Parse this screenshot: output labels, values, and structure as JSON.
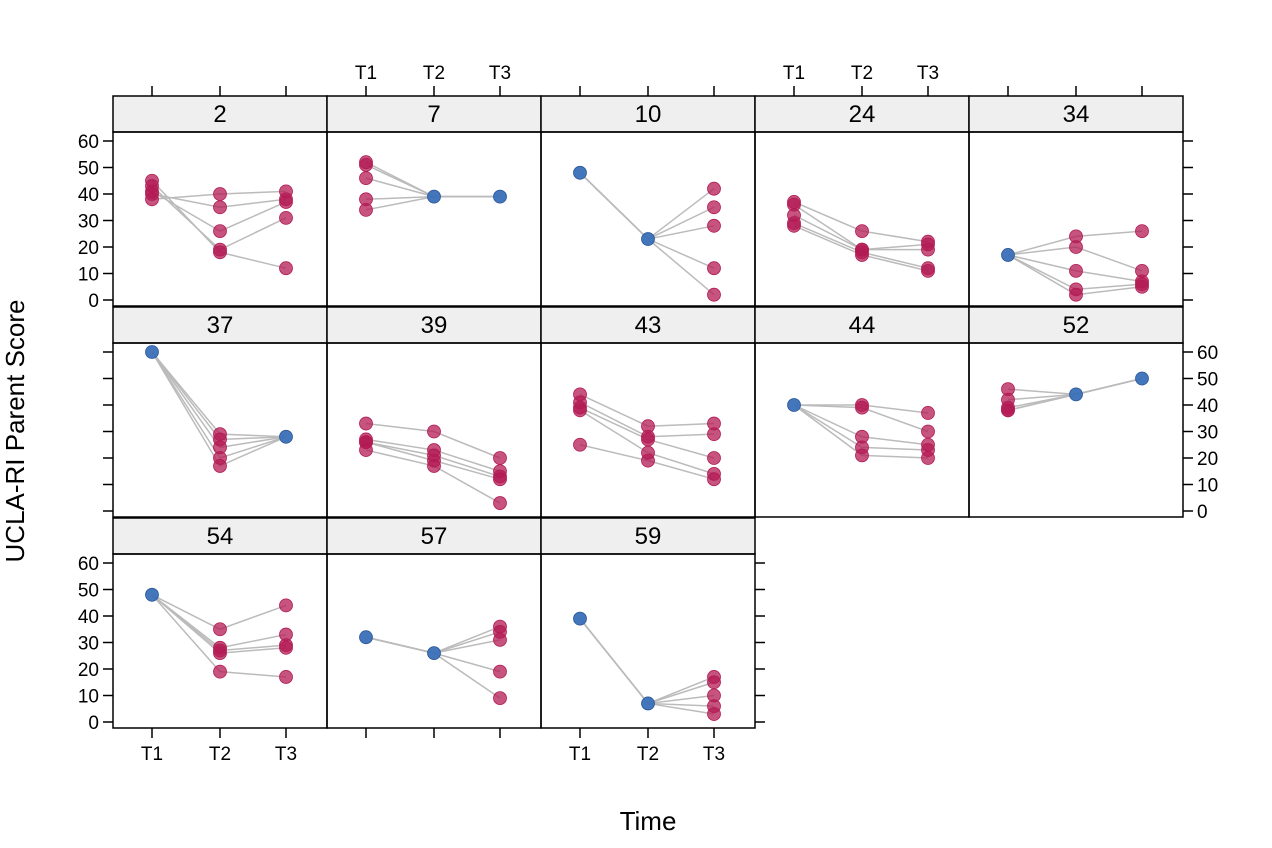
{
  "chart_data": {
    "type": "scatter",
    "title": "",
    "xlabel": "Time",
    "ylabel": "UCLA-RI Parent Score",
    "x_ticks": [
      "T1",
      "T2",
      "T3"
    ],
    "y_ticks": [
      0,
      10,
      20,
      30,
      40,
      50,
      60
    ],
    "ylim": [
      -1,
      63
    ],
    "grid": false,
    "colors": {
      "anchor": "#3a6fb8",
      "member": "#b31b54",
      "line": "#bbbbbb",
      "strip": "#efefef"
    },
    "panels": [
      {
        "id": "2",
        "anchor": null,
        "members": [
          [
            45,
            18,
            12
          ],
          [
            43,
            19,
            31
          ],
          [
            41,
            26,
            37
          ],
          [
            38,
            40,
            41
          ],
          [
            40,
            35,
            38
          ]
        ]
      },
      {
        "id": "7",
        "anchor": [
          null,
          39,
          39
        ],
        "members": [
          [
            52,
            null,
            null
          ],
          [
            51,
            null,
            null
          ],
          [
            46,
            null,
            null
          ],
          [
            38,
            null,
            null
          ],
          [
            34,
            null,
            null
          ]
        ]
      },
      {
        "id": "10",
        "anchor": [
          48,
          23,
          null
        ],
        "members": [
          [
            null,
            null,
            42
          ],
          [
            null,
            null,
            35
          ],
          [
            null,
            null,
            28
          ],
          [
            null,
            null,
            12
          ],
          [
            null,
            null,
            2
          ]
        ]
      },
      {
        "id": "24",
        "anchor": null,
        "members": [
          [
            37,
            26,
            22
          ],
          [
            36,
            19,
            21
          ],
          [
            32,
            19,
            19
          ],
          [
            29,
            18,
            12
          ],
          [
            28,
            17,
            11
          ]
        ]
      },
      {
        "id": "34",
        "anchor": [
          17,
          null,
          null
        ],
        "members": [
          [
            null,
            24,
            26
          ],
          [
            null,
            20,
            11
          ],
          [
            null,
            11,
            7
          ],
          [
            null,
            4,
            6
          ],
          [
            null,
            2,
            5
          ]
        ]
      },
      {
        "id": "37",
        "anchor": [
          60,
          null,
          28
        ],
        "members": [
          [
            null,
            29,
            null
          ],
          [
            null,
            27,
            null
          ],
          [
            null,
            24,
            null
          ],
          [
            null,
            20,
            null
          ],
          [
            null,
            17,
            null
          ]
        ]
      },
      {
        "id": "39",
        "anchor": null,
        "members": [
          [
            33,
            30,
            20
          ],
          [
            27,
            23,
            15
          ],
          [
            26,
            21,
            13
          ],
          [
            26,
            19,
            12
          ],
          [
            23,
            17,
            3
          ]
        ]
      },
      {
        "id": "43",
        "anchor": null,
        "members": [
          [
            44,
            32,
            33
          ],
          [
            41,
            28,
            29
          ],
          [
            39,
            27,
            20
          ],
          [
            38,
            22,
            14
          ],
          [
            25,
            19,
            12
          ]
        ]
      },
      {
        "id": "44",
        "anchor": [
          40,
          null,
          null
        ],
        "members": [
          [
            null,
            40,
            37
          ],
          [
            null,
            39,
            30
          ],
          [
            null,
            28,
            25
          ],
          [
            null,
            24,
            23
          ],
          [
            null,
            21,
            20
          ]
        ]
      },
      {
        "id": "52",
        "anchor": [
          null,
          44,
          50
        ],
        "members": [
          [
            46,
            null,
            null
          ],
          [
            42,
            null,
            null
          ],
          [
            39,
            null,
            null
          ],
          [
            38,
            null,
            null
          ],
          [
            38,
            null,
            null
          ]
        ]
      },
      {
        "id": "54",
        "anchor": [
          48,
          null,
          null
        ],
        "members": [
          [
            null,
            35,
            44
          ],
          [
            null,
            28,
            33
          ],
          [
            null,
            27,
            29
          ],
          [
            null,
            26,
            28
          ],
          [
            null,
            19,
            17
          ]
        ]
      },
      {
        "id": "57",
        "anchor": [
          32,
          26,
          null
        ],
        "members": [
          [
            null,
            null,
            36
          ],
          [
            null,
            null,
            34
          ],
          [
            null,
            null,
            31
          ],
          [
            null,
            null,
            19
          ],
          [
            null,
            null,
            9
          ]
        ]
      },
      {
        "id": "59",
        "anchor": [
          39,
          7,
          null
        ],
        "members": [
          [
            null,
            null,
            17
          ],
          [
            null,
            null,
            15
          ],
          [
            null,
            null,
            10
          ],
          [
            null,
            null,
            6
          ],
          [
            null,
            null,
            3
          ]
        ]
      }
    ]
  }
}
